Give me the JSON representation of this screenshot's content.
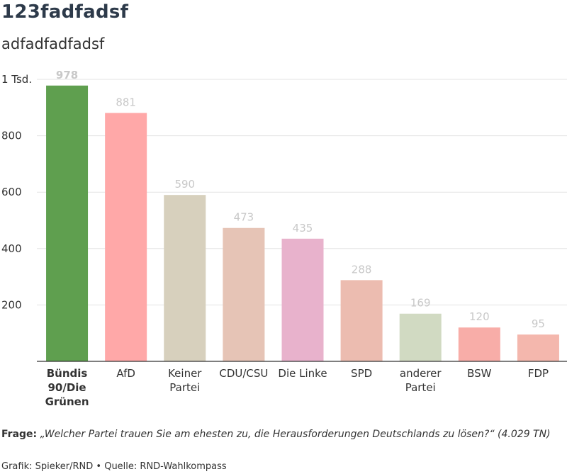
{
  "header": {
    "title": "123fadfadsf",
    "subtitle": "adfadfadfadsf"
  },
  "footer": {
    "question_label": "Frage:",
    "question_text": "„Welcher Partei trauen Sie am ehesten zu, die Herausforderungen Deutschlands zu lösen?“ (4.029 TN)",
    "source": "Grafik: Spieker/RND • Quelle: RND-Wahlkompass"
  },
  "chart_data": {
    "type": "bar",
    "categories": [
      "Bündis 90/Die Grünen",
      "AfD",
      "Keiner Partei",
      "CDU/CSU",
      "Die Linke",
      "SPD",
      "anderer Partei",
      "BSW",
      "FDP"
    ],
    "category_lines": [
      [
        "Bündis",
        "90/Die",
        "Grünen"
      ],
      [
        "AfD"
      ],
      [
        "Keiner",
        "Partei"
      ],
      [
        "CDU/CSU"
      ],
      [
        "Die Linke"
      ],
      [
        "SPD"
      ],
      [
        "anderer",
        "Partei"
      ],
      [
        "BSW"
      ],
      [
        "FDP"
      ]
    ],
    "values": [
      978,
      881,
      590,
      473,
      435,
      288,
      169,
      120,
      95
    ],
    "colors": [
      "#5f9f4f",
      "#ffa8a8",
      "#d7d0bd",
      "#e6c4b6",
      "#e8b2cc",
      "#ecbcb0",
      "#d1dac2",
      "#f8ada8",
      "#f4b7ad"
    ],
    "highlight_index": 0,
    "highlight_value_color": "#666666",
    "yticks": [
      200,
      400,
      600,
      800,
      1000
    ],
    "ytick_labels": [
      "200",
      "400",
      "600",
      "800",
      "1 Tsd."
    ],
    "ylim": [
      0,
      1000
    ],
    "grid": true,
    "xlabel": "",
    "ylabel": ""
  }
}
